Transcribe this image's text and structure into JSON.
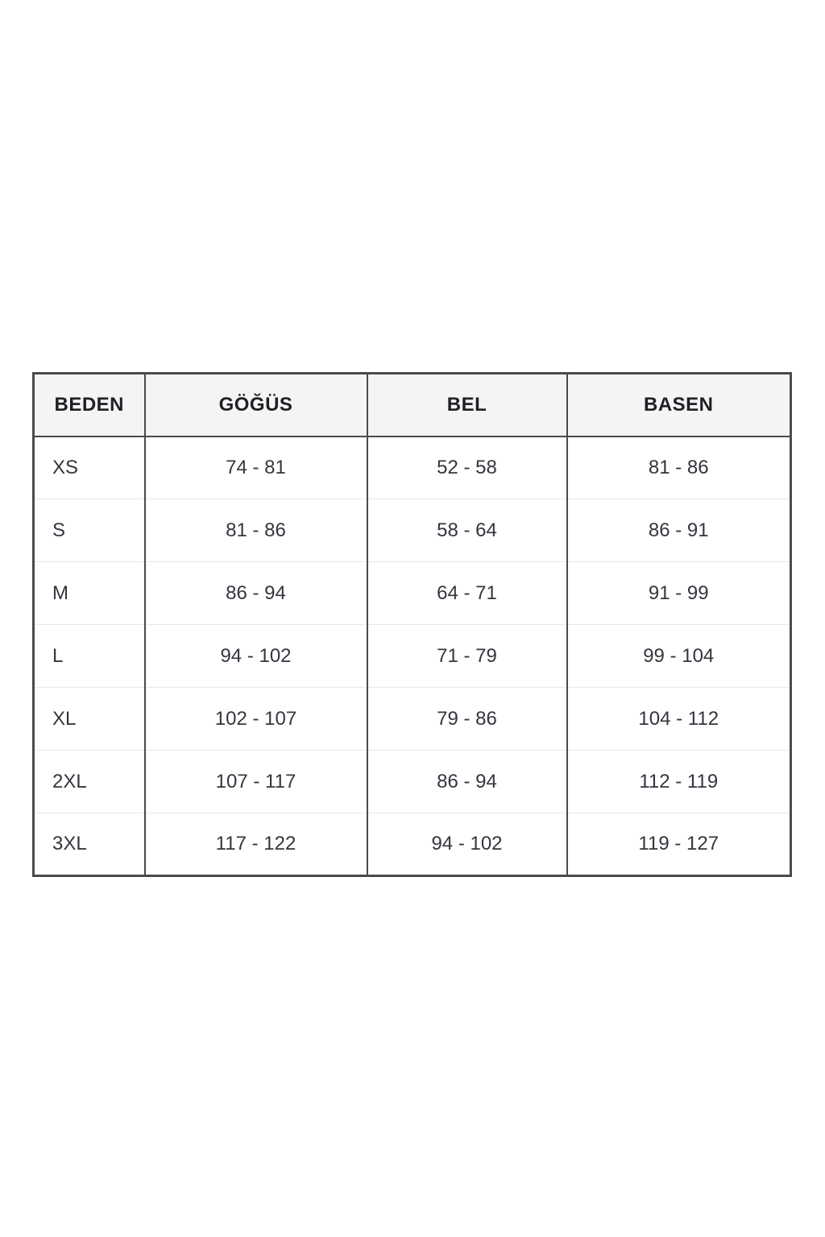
{
  "chart_data": {
    "type": "table",
    "columns": [
      "BEDEN",
      "GÖĞÜS",
      "BEL",
      "BASEN"
    ],
    "rows": [
      [
        "XS",
        "74 - 81",
        "52 - 58",
        "81 - 86"
      ],
      [
        "S",
        "81 - 86",
        "58 - 64",
        "86 - 91"
      ],
      [
        "M",
        "86 - 94",
        "64 - 71",
        "91 - 99"
      ],
      [
        "L",
        "94 - 102",
        "71 - 79",
        "99 - 104"
      ],
      [
        "XL",
        "102 - 107",
        "79 - 86",
        "104 - 112"
      ],
      [
        "2XL",
        "107 - 117",
        "86 - 94",
        "112 - 119"
      ],
      [
        "3XL",
        "117 - 122",
        "94 - 102",
        "119 - 127"
      ]
    ],
    "layout": {
      "grid": "vertical dark lines, light horizontal row dividers",
      "header_position": "top"
    }
  },
  "colors": {
    "background": "#ffffff",
    "table_border": "#4a4a4a",
    "header_background": "#f4f4f4",
    "row_divider": "#e9e9e9",
    "header_text": "#1f1f26",
    "cell_text": "#35353f"
  }
}
